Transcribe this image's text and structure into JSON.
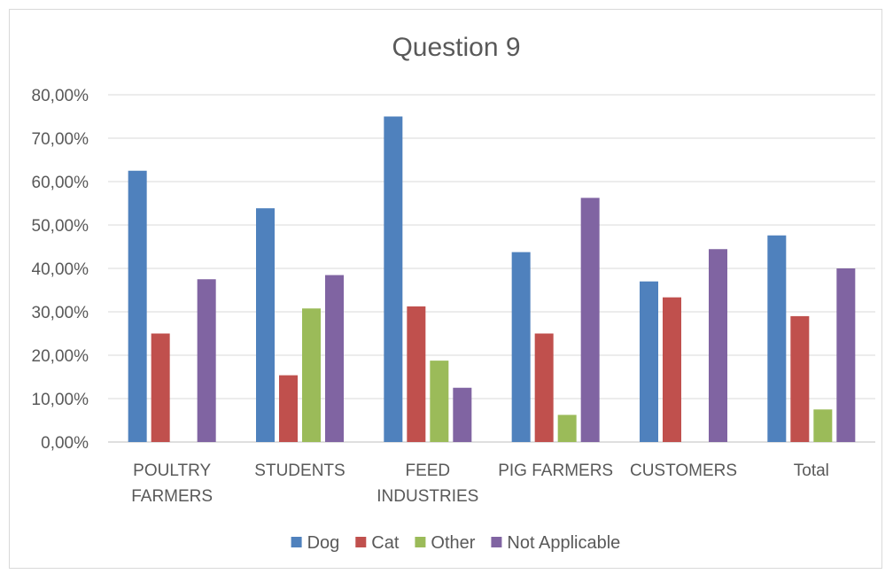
{
  "chart_data": {
    "type": "bar",
    "title": "Question 9",
    "xlabel": "",
    "ylabel": "",
    "ylim": [
      0,
      0.8
    ],
    "yticks": [
      "0,00%",
      "10,00%",
      "20,00%",
      "30,00%",
      "40,00%",
      "50,00%",
      "60,00%",
      "70,00%",
      "80,00%"
    ],
    "grid": true,
    "legend_position": "bottom",
    "categories": [
      [
        "POULTRY",
        "FARMERS"
      ],
      [
        "STUDENTS"
      ],
      [
        "FEED",
        "INDUSTRIES"
      ],
      [
        "PIG FARMERS"
      ],
      [
        "CUSTOMERS"
      ],
      [
        "Total"
      ]
    ],
    "series": [
      {
        "name": "Dog",
        "color": "#4f81bd",
        "values": [
          0.625,
          0.5385,
          0.75,
          0.4375,
          0.37,
          0.476
        ]
      },
      {
        "name": "Cat",
        "color": "#c0504d",
        "values": [
          0.25,
          0.1538,
          0.3125,
          0.25,
          0.3333,
          0.29
        ]
      },
      {
        "name": "Other",
        "color": "#9bbb59",
        "values": [
          0,
          0.3077,
          0.1875,
          0.0625,
          0,
          0.075
        ]
      },
      {
        "name": "Not Applicable",
        "color": "#8064a2",
        "values": [
          0.375,
          0.3846,
          0.125,
          0.5625,
          0.4444,
          0.4
        ]
      }
    ]
  }
}
